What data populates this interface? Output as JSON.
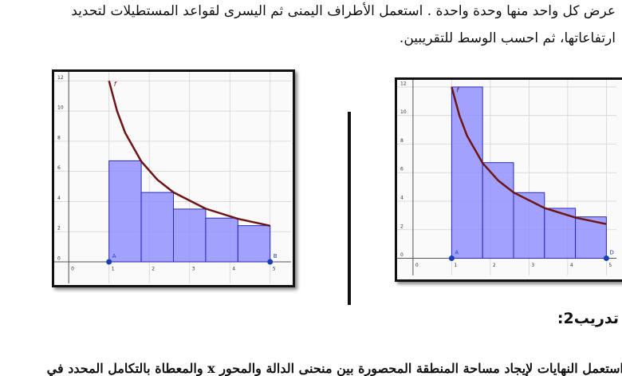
{
  "document": {
    "line1": "عرض كل واحد منها وحدة واحدة . استعمل الأطراف اليمنى ثم اليسرى لقواعد المستطيلات لتحديد",
    "line2": "ارتفاعاتها، ثم احسب الوسط للتقريبين.",
    "heading": "تدريب2:",
    "line3": "استعمل النهايات لإيجاد مساحة المنطقة المحصورة بين منحنى الدالة والمحور x والمعطاة بالتكامل المحدد في"
  },
  "chart_data": [
    {
      "type": "histogram",
      "bins": [
        1,
        1.8,
        2.6,
        3.4,
        4.2,
        5
      ],
      "values": [
        6.7,
        4.6,
        3.5,
        2.9,
        2.4
      ],
      "color": "#8c8cff",
      "xlim": [
        -0.36,
        5.52
      ],
      "ylim": [
        -1.43,
        12.6
      ],
      "xticks": [
        0,
        1,
        2,
        3,
        4,
        5
      ],
      "yticks": [
        0,
        2,
        4,
        6,
        8,
        10,
        12
      ],
      "grid": true,
      "curve_label": "f",
      "points": [
        {
          "label": "A",
          "x": 1,
          "y": 0
        },
        {
          "label": "B",
          "x": 5,
          "y": 0
        }
      ]
    },
    {
      "type": "histogram",
      "bins": [
        1,
        1.8,
        2.6,
        3.4,
        4.2,
        5
      ],
      "values": [
        12,
        6.7,
        4.6,
        3.5,
        2.9
      ],
      "color": "#8c8cff",
      "xlim": [
        -0.41,
        5.26
      ],
      "ylim": [
        -1.2,
        12.5
      ],
      "xticks": [
        0,
        1,
        2,
        3,
        4,
        5
      ],
      "yticks": [
        0,
        2,
        4,
        6,
        8,
        10,
        12
      ],
      "grid": true,
      "curve_label": "f",
      "points": [
        {
          "label": "A",
          "x": 1,
          "y": 0
        },
        {
          "label": "D",
          "x": 5,
          "y": 0
        }
      ]
    }
  ]
}
